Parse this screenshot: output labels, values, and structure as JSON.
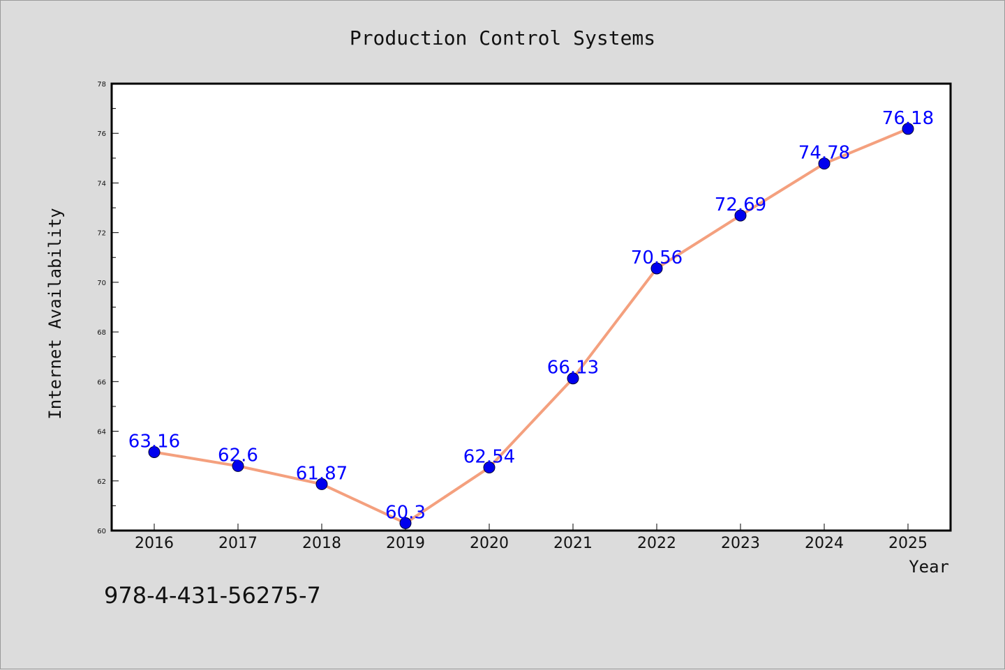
{
  "chart_data": {
    "type": "line",
    "title": "Production Control Systems",
    "xlabel": "Year",
    "ylabel": "Internet Availability",
    "x": [
      "2016",
      "2017",
      "2018",
      "2019",
      "2020",
      "2021",
      "2022",
      "2023",
      "2024",
      "2025"
    ],
    "series": [
      {
        "values": [
          63.16,
          62.6,
          61.87,
          60.3,
          62.54,
          66.13,
          70.56,
          72.69,
          74.78,
          76.18
        ],
        "labels": [
          "63.16",
          "62.6",
          "61.87",
          "60.3",
          "62.54",
          "66.13",
          "70.56",
          "72.69",
          "74.78",
          "76.18"
        ]
      }
    ],
    "ylim": [
      60,
      78
    ],
    "yticks": [
      "60",
      "62",
      "64",
      "66",
      "68",
      "70",
      "72",
      "74",
      "76",
      "78"
    ],
    "grid": false,
    "legend": "none",
    "colors": {
      "line": "#f4a07e",
      "marker": "#0000ee",
      "label": "#0000ff",
      "background": "#dcdcdc",
      "plot_background": "#ffffff"
    }
  },
  "footer": {
    "isbn": "978-4-431-56275-7"
  }
}
